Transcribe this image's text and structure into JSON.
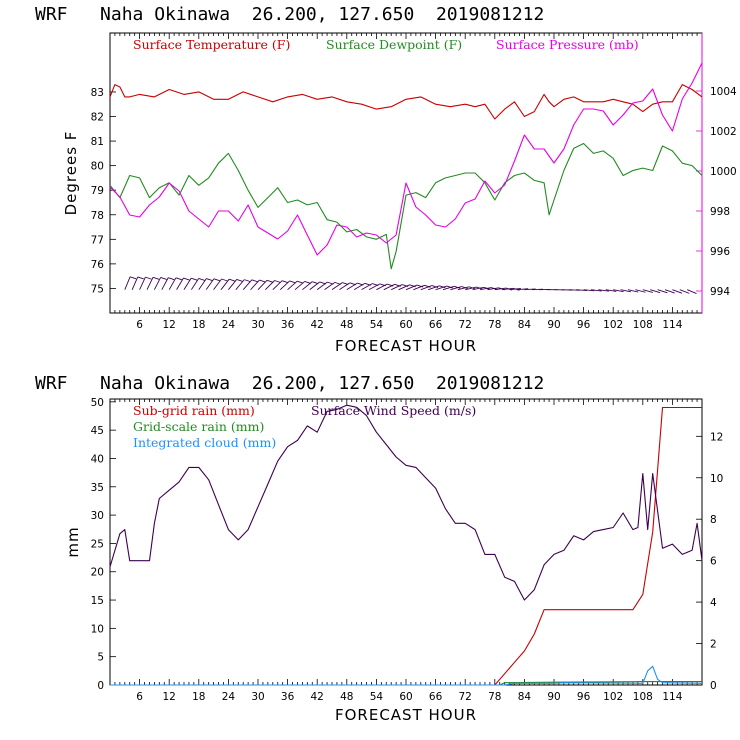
{
  "colors": {
    "temperature": "#c80000",
    "dewpoint": "#228b22",
    "pressure": "#e600e6",
    "wind": "#3d0050",
    "rain_subgrid": "#c80000",
    "rain_grid": "#228b22",
    "cloud": "#1e90ff"
  },
  "chart_data": [
    {
      "type": "line",
      "title": "WRF   Naha Okinawa  26.200, 127.650  2019081212",
      "xlabel": "FORECAST HOUR",
      "ylabel": "Degrees F",
      "xlim": [
        0,
        120
      ],
      "ylim": [
        74,
        85.4
      ],
      "y2lim": [
        992.9,
        1006.9
      ],
      "xticks": [
        "6",
        "12",
        "18",
        "24",
        "30",
        "36",
        "42",
        "48",
        "54",
        "60",
        "66",
        "72",
        "78",
        "84",
        "90",
        "96",
        "102",
        "108",
        "114"
      ],
      "yticks": [
        "75",
        "76",
        "77",
        "78",
        "79",
        "80",
        "81",
        "82",
        "83"
      ],
      "y2ticks": [
        "994",
        "996",
        "998",
        "1000",
        "1002",
        "1004"
      ],
      "series": [
        {
          "name": "Surface Temperature (F)",
          "axis": "left",
          "x": [
            0,
            1,
            2,
            3,
            4,
            6,
            9,
            12,
            15,
            18,
            21,
            24,
            27,
            30,
            33,
            36,
            39,
            42,
            45,
            48,
            51,
            54,
            57,
            60,
            63,
            66,
            69,
            72,
            74,
            76,
            78,
            80,
            82,
            84,
            86,
            88,
            89,
            90,
            92,
            94,
            96,
            98,
            100,
            102,
            104,
            106,
            108,
            110,
            112,
            114,
            116,
            118,
            120
          ],
          "y": [
            82.8,
            83.3,
            83.2,
            82.8,
            82.8,
            82.9,
            82.8,
            83.1,
            82.9,
            83.0,
            82.7,
            82.7,
            83.0,
            82.8,
            82.6,
            82.8,
            82.9,
            82.7,
            82.8,
            82.6,
            82.5,
            82.3,
            82.4,
            82.7,
            82.8,
            82.5,
            82.4,
            82.5,
            82.4,
            82.5,
            81.9,
            82.3,
            82.6,
            82.0,
            82.2,
            82.9,
            82.6,
            82.4,
            82.7,
            82.8,
            82.6,
            82.6,
            82.6,
            82.7,
            82.6,
            82.5,
            82.2,
            82.5,
            82.6,
            82.6,
            83.3,
            83.1,
            82.8
          ]
        },
        {
          "name": "Surface Dewpoint (F)",
          "axis": "left",
          "x": [
            0,
            2,
            4,
            6,
            8,
            10,
            12,
            14,
            16,
            18,
            20,
            22,
            24,
            26,
            28,
            30,
            32,
            34,
            36,
            38,
            40,
            42,
            44,
            46,
            48,
            50,
            52,
            54,
            56,
            57,
            58,
            60,
            62,
            64,
            66,
            68,
            70,
            72,
            74,
            76,
            78,
            80,
            82,
            84,
            86,
            88,
            89,
            90,
            92,
            94,
            96,
            98,
            100,
            102,
            104,
            106,
            108,
            110,
            112,
            114,
            116,
            118,
            120
          ],
          "y": [
            79.2,
            78.7,
            79.6,
            79.5,
            78.7,
            79.1,
            79.3,
            78.8,
            79.6,
            79.2,
            79.5,
            80.1,
            80.5,
            79.8,
            79.0,
            78.3,
            78.7,
            79.1,
            78.5,
            78.6,
            78.4,
            78.5,
            77.8,
            77.7,
            77.3,
            77.4,
            77.1,
            77.0,
            77.2,
            75.8,
            76.5,
            78.8,
            78.9,
            78.7,
            79.3,
            79.5,
            79.6,
            79.7,
            79.7,
            79.3,
            78.6,
            79.3,
            79.6,
            79.7,
            79.4,
            79.3,
            78.0,
            78.6,
            79.8,
            80.7,
            80.9,
            80.5,
            80.6,
            80.3,
            79.6,
            79.8,
            79.9,
            79.8,
            80.8,
            80.6,
            80.1,
            80.0,
            79.6
          ]
        },
        {
          "name": "Surface Pressure (mb)",
          "axis": "right",
          "x": [
            0,
            2,
            4,
            6,
            8,
            10,
            12,
            14,
            16,
            18,
            20,
            22,
            24,
            26,
            28,
            30,
            32,
            34,
            36,
            38,
            40,
            42,
            44,
            46,
            48,
            50,
            52,
            54,
            56,
            58,
            60,
            62,
            64,
            66,
            68,
            70,
            72,
            74,
            76,
            78,
            80,
            82,
            84,
            86,
            88,
            90,
            92,
            94,
            96,
            98,
            100,
            102,
            104,
            106,
            108,
            110,
            112,
            114,
            116,
            118,
            120
          ],
          "y": [
            999.2,
            998.7,
            997.8,
            997.7,
            998.3,
            998.7,
            999.4,
            999.0,
            998.0,
            997.6,
            997.2,
            998.0,
            998.0,
            997.5,
            998.3,
            997.2,
            996.9,
            996.6,
            997.0,
            997.8,
            996.8,
            995.8,
            996.3,
            997.3,
            997.2,
            996.7,
            996.9,
            996.8,
            996.4,
            996.8,
            999.4,
            998.2,
            997.8,
            997.3,
            997.2,
            997.6,
            998.4,
            998.6,
            999.5,
            998.9,
            999.3,
            1000.5,
            1001.8,
            1001.1,
            1001.1,
            1000.4,
            1001.1,
            1002.3,
            1003.1,
            1003.1,
            1003.0,
            1002.3,
            1002.8,
            1003.4,
            1003.5,
            1004.1,
            1002.8,
            1002.0,
            1003.6,
            1004.4,
            1005.4
          ]
        }
      ],
      "wind_barbs": true
    },
    {
      "type": "line",
      "title": "WRF   Naha Okinawa  26.200, 127.650  2019081212",
      "xlabel": "FORECAST HOUR",
      "ylabel": "mm",
      "xlim": [
        0,
        120
      ],
      "ylim": [
        0,
        50.5
      ],
      "y2lim": [
        0,
        13.8
      ],
      "xticks": [
        "6",
        "12",
        "18",
        "24",
        "30",
        "36",
        "42",
        "48",
        "54",
        "60",
        "66",
        "72",
        "78",
        "84",
        "90",
        "96",
        "102",
        "108",
        "114"
      ],
      "yticks": [
        "0",
        "5",
        "10",
        "15",
        "20",
        "25",
        "30",
        "35",
        "40",
        "45",
        "50"
      ],
      "y2ticks": [
        "0",
        "2",
        "4",
        "6",
        "8",
        "10",
        "12"
      ],
      "series": [
        {
          "name": "Sub-grid rain (mm)",
          "axis": "left",
          "x": [
            0,
            78,
            80,
            82,
            84,
            86,
            88,
            90,
            92,
            94,
            96,
            98,
            100,
            102,
            104,
            106,
            108,
            110,
            112,
            114,
            116,
            118,
            120
          ],
          "y": [
            0,
            0,
            2,
            4,
            6,
            9,
            13.3,
            13.3,
            13.3,
            13.3,
            13.3,
            13.3,
            13.3,
            13.3,
            13.3,
            13.3,
            16,
            27,
            49,
            49,
            49,
            49,
            49
          ]
        },
        {
          "name": "Grid-scale rain (mm)",
          "axis": "left",
          "x": [
            0,
            79,
            80,
            90,
            108,
            120
          ],
          "y": [
            0,
            0,
            0.4,
            0.5,
            0.6,
            0.6
          ]
        },
        {
          "name": "Integrated cloud (mm)",
          "axis": "left",
          "x": [
            0,
            80,
            82,
            90,
            92,
            108,
            109,
            110,
            111,
            112,
            120
          ],
          "y": [
            0,
            0,
            0.3,
            0.3,
            0.4,
            0.3,
            2.5,
            3.3,
            1.0,
            0.4,
            0.3
          ]
        },
        {
          "name": "Surface Wind Speed (m/s)",
          "axis": "right",
          "x": [
            0,
            2,
            3,
            4,
            6,
            8,
            9,
            10,
            12,
            14,
            16,
            18,
            20,
            22,
            24,
            26,
            28,
            30,
            32,
            34,
            36,
            38,
            40,
            42,
            44,
            46,
            48,
            50,
            52,
            54,
            56,
            58,
            60,
            62,
            64,
            66,
            68,
            70,
            72,
            74,
            76,
            78,
            80,
            82,
            84,
            86,
            88,
            90,
            92,
            94,
            96,
            98,
            100,
            102,
            104,
            106,
            107,
            108,
            109,
            110,
            112,
            114,
            116,
            118,
            119,
            120
          ],
          "y": [
            5.7,
            7.3,
            7.5,
            6.0,
            6.0,
            6.0,
            7.8,
            9.0,
            9.4,
            9.8,
            10.5,
            10.5,
            9.9,
            8.7,
            7.5,
            7.0,
            7.5,
            8.6,
            9.7,
            10.8,
            11.5,
            11.8,
            12.5,
            12.2,
            13.2,
            13.3,
            13.5,
            13.4,
            13.0,
            12.2,
            11.6,
            11.0,
            10.6,
            10.5,
            10.0,
            9.5,
            8.5,
            7.8,
            7.8,
            7.5,
            6.3,
            6.3,
            5.2,
            5.0,
            4.1,
            4.6,
            5.8,
            6.3,
            6.5,
            7.2,
            7.0,
            7.4,
            7.5,
            7.6,
            8.3,
            7.5,
            7.6,
            10.2,
            7.5,
            10.2,
            6.6,
            6.8,
            6.3,
            6.5,
            7.8,
            6.0
          ]
        }
      ]
    }
  ],
  "panel_top": {
    "title": "WRF   Naha Okinawa  26.200, 127.650  2019081212",
    "xlabel": "FORECAST HOUR",
    "ylabel": "Degrees F",
    "legend": {
      "temperature": "Surface Temperature (F)",
      "dewpoint": "Surface Dewpoint (F)",
      "pressure": "Surface Pressure (mb)"
    }
  },
  "panel_bottom": {
    "title": "WRF   Naha Okinawa  26.200, 127.650  2019081212",
    "xlabel": "FORECAST HOUR",
    "ylabel": "mm",
    "legend": {
      "rain_subgrid": "Sub-grid rain (mm)",
      "wind": "Surface Wind Speed (m/s)",
      "rain_grid": "Grid-scale rain (mm)",
      "cloud": "Integrated cloud (mm)"
    }
  }
}
